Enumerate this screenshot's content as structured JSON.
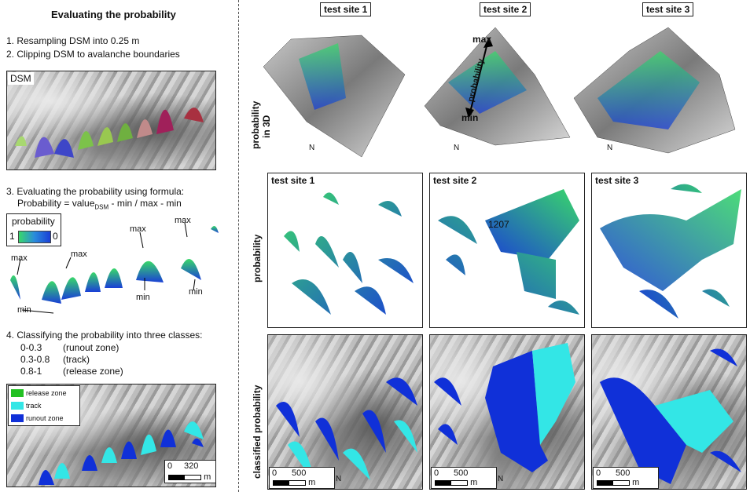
{
  "left": {
    "title": "Evaluating the probability",
    "step1": "1. Resampling DSM into 0.25 m",
    "step2": "2. Clipping DSM to avalanche boundaries",
    "dsm_label": "DSM",
    "step3": "3. Evaluating the probability using formula:",
    "formula_prefix": "Probability = value",
    "formula_sub": "DSM",
    "formula_suffix": " - min / max - min",
    "legend_title": "probability",
    "legend_left": "1",
    "legend_right": "0",
    "max_label": "max",
    "min_label": "min",
    "step4": "4. Classifying the probability into three classes:",
    "classes": [
      {
        "range": "0-0.3",
        "name": "(runout zone)"
      },
      {
        "range": "0.3-0.8",
        "name": "(track)"
      },
      {
        "range": "0.8-1",
        "name": "(release zone)"
      }
    ],
    "class_legend": [
      {
        "label": "release zone",
        "color": "#22c022"
      },
      {
        "label": "track",
        "color": "#33e6e6"
      },
      {
        "label": "runout zone",
        "color": "#1030d8"
      }
    ],
    "scale_zero": "0",
    "scale_value": "320",
    "scale_unit": "m"
  },
  "right": {
    "sites": [
      "test site 1",
      "test site 2",
      "test site 3"
    ],
    "row1_label": "probability in 3D",
    "row1_label_a": "probability",
    "row1_label_b": "in 3D",
    "arrow_max": "max",
    "arrow_min": "min",
    "arrow_word": "probability",
    "row2_label": "probability",
    "row3_label": "classified probability",
    "annotation": "1207",
    "scale_zero": "0",
    "scale_value": "500",
    "scale_unit": "m",
    "north": "N"
  },
  "colors": {
    "release": "#22c022",
    "track": "#33e6e6",
    "runout": "#1030d8",
    "prob_high": "#39d86a",
    "prob_low": "#1a3fd6"
  }
}
